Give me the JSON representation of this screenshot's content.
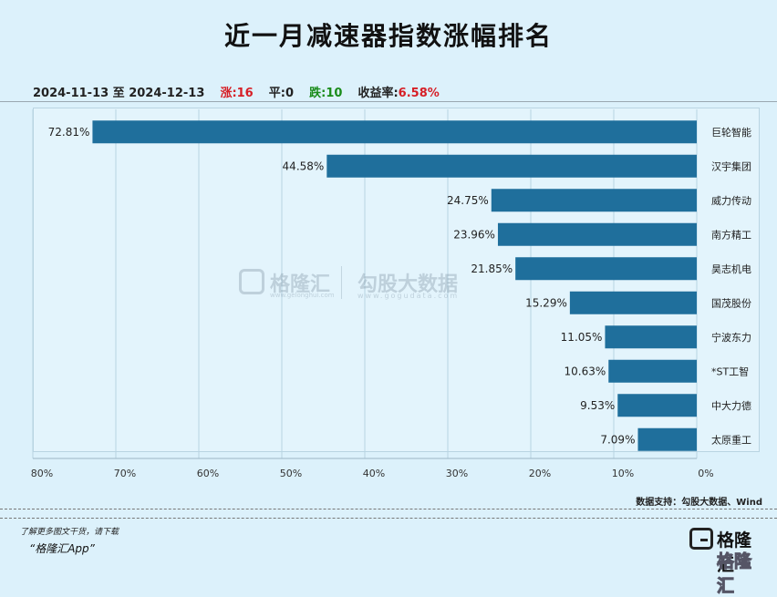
{
  "title": "近一月减速器指数涨幅排名",
  "summary": {
    "period": "2024-11-13 至 2024-12-13",
    "up_label": "涨:",
    "up_count": "16",
    "flat_label": "平:",
    "flat_count": "0",
    "down_label": "跌:",
    "down_count": "10",
    "return_label": "收益率:",
    "return_value": "6.58%"
  },
  "source": "数据支持：勾股大数据、Wind",
  "promo": {
    "line1": "了解更多图文干货，请下载",
    "line2": "“格隆汇App”"
  },
  "logo": {
    "name": "格隆汇",
    "watermark_left": "格隆汇",
    "watermark_left_sub": "www.gelonghui.com",
    "watermark_right": "勾股大数据",
    "watermark_right_sub": "www.gogudata.com"
  },
  "colors": {
    "bar": "#1f6f9c",
    "up": "#d61f26",
    "down": "#1a8c1a",
    "background": "#dcf1fb"
  },
  "chart_data": {
    "type": "bar",
    "orientation": "horizontal",
    "x_reversed": true,
    "categories": [
      "巨轮智能",
      "汉宇集团",
      "威力传动",
      "南方精工",
      "昊志机电",
      "国茂股份",
      "宁波东力",
      "*ST工智",
      "中大力德",
      "太原重工"
    ],
    "values": [
      72.81,
      44.58,
      24.75,
      23.96,
      21.85,
      15.29,
      11.05,
      10.63,
      9.53,
      7.09
    ],
    "value_labels": [
      "72.81%",
      "44.58%",
      "24.75%",
      "23.96%",
      "21.85%",
      "15.29%",
      "11.05%",
      "10.63%",
      "9.53%",
      "7.09%"
    ],
    "x_ticks": [
      80,
      70,
      60,
      50,
      40,
      30,
      20,
      10,
      0
    ],
    "x_tick_labels": [
      "80%",
      "70%",
      "60%",
      "50%",
      "40%",
      "30%",
      "20%",
      "10%",
      "0%"
    ],
    "xlim": [
      0,
      80
    ],
    "grid": true,
    "title": "",
    "xlabel": "",
    "ylabel": ""
  }
}
